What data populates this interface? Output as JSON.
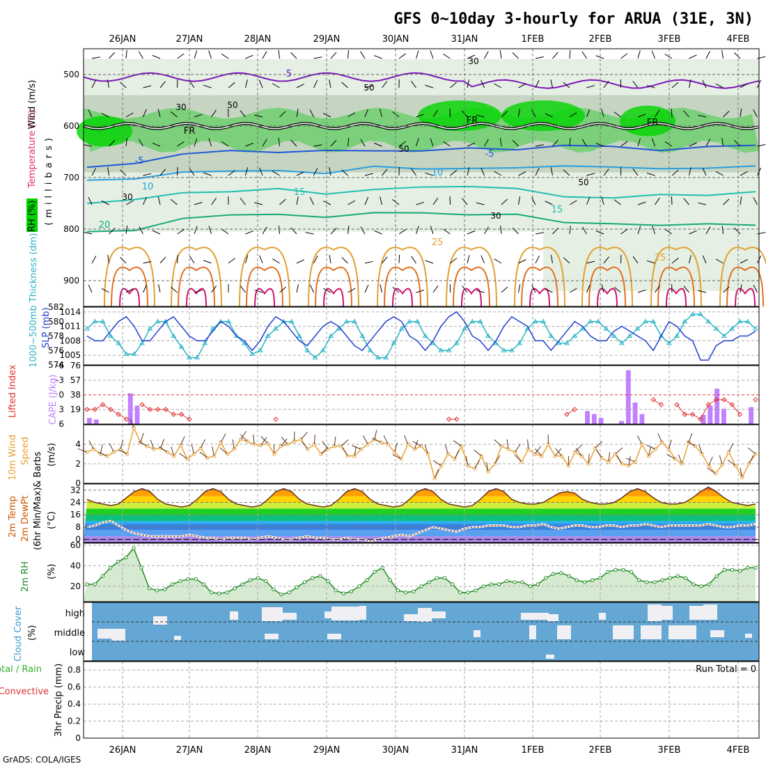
{
  "title": "GFS 0~10day 3-hourly for ARUA (31E, 3N)",
  "footer": "GrADS: COLA/IGES",
  "dates": [
    "26JAN",
    "27JAN",
    "28JAN",
    "29JAN",
    "30JAN",
    "31JAN",
    "1FEB",
    "2FEB",
    "3FEB",
    "4FEB"
  ],
  "chart_data": [
    {
      "type": "heatmap",
      "name": "upper-air cross-section",
      "ylabel_parts": {
        "rh": "RH (%)",
        "temp": "Temperature (°C)",
        "wind": "Wind (m/s)",
        "mb": "(millibars)"
      },
      "y_ticks": [
        500,
        600,
        700,
        800,
        900
      ],
      "ylim": [
        450,
        950
      ],
      "contour_labels": [
        "5",
        "FR",
        "-5",
        "10",
        "15",
        "20",
        "25",
        "30",
        "50"
      ],
      "freezing_level_mb": 600,
      "isotherms": [
        {
          "label": "-5",
          "level_mb": [
            680,
            670,
            655,
            650,
            650,
            645,
            650,
            650,
            640,
            645,
            640,
            640,
            645,
            640,
            640
          ]
        },
        {
          "label": "10",
          "level_mb": [
            705,
            700,
            690,
            690,
            685,
            690,
            680,
            685,
            680,
            680,
            680,
            680,
            680,
            682,
            680
          ]
        },
        {
          "label": "15",
          "level_mb": [
            750,
            740,
            730,
            730,
            720,
            730,
            725,
            720,
            715,
            720,
            740,
            740,
            730,
            735,
            730
          ]
        },
        {
          "label": "20",
          "level_mb": [
            805,
            800,
            780,
            775,
            770,
            775,
            770,
            770,
            770,
            770,
            790,
            790,
            790,
            790,
            795
          ]
        }
      ],
      "colors": {
        "rh30": "#e6efe3",
        "rh50": "#c5d5c2",
        "rh70": "#6fcf6f",
        "rh90": "#00d400",
        "fr": "#000000",
        "neg5": "#1f56d6",
        "t10": "#2a9fe0",
        "t15": "#1fbfb0",
        "t20": "#16a97a",
        "t25": "#e0a030",
        "t30": "#e07020",
        "t35": "#d01070",
        "t5": "#7a18b8"
      }
    },
    {
      "type": "line",
      "name": "SLP and thickness",
      "ylabel_parts": {
        "thick": "1000~500mb Thickness (dm)",
        "slp": "SLP (mb)"
      },
      "left_ticks": [
        574,
        576,
        578,
        580,
        582
      ],
      "right_ticks": [
        1005,
        1008,
        1011,
        1014
      ],
      "series": [
        {
          "name": "SLP (mb)",
          "color": "#1f3fcf",
          "values": [
            1009,
            1008,
            1008,
            1010,
            1012,
            1013,
            1011,
            1008,
            1008,
            1010,
            1012,
            1013,
            1011,
            1009,
            1008,
            1008,
            1010,
            1012,
            1011,
            1009,
            1008,
            1006,
            1008,
            1011,
            1013,
            1012,
            1010,
            1008,
            1007,
            1009,
            1011,
            1012,
            1011,
            1009,
            1007,
            1006,
            1008,
            1010,
            1012,
            1013,
            1012,
            1009,
            1008,
            1006,
            1008,
            1011,
            1013,
            1014,
            1012,
            1009,
            1008,
            1006,
            1008,
            1011,
            1013,
            1012,
            1011,
            1008,
            1008,
            1006,
            1008,
            1010,
            1012,
            1011,
            1009,
            1008,
            1008,
            1010,
            1011,
            1010,
            1009,
            1008,
            1006,
            1009,
            1012,
            1011,
            1009,
            1008,
            1004,
            1004,
            1007,
            1008,
            1008,
            1009,
            1009,
            1010
          ]
        },
        {
          "name": "1000~500mb Thickness (dm)",
          "color": "#2ab5c6",
          "values": [
            579,
            580,
            580,
            578,
            577,
            575.5,
            575.5,
            577,
            579,
            580,
            580,
            578,
            576.5,
            575,
            575,
            577,
            579,
            580,
            580,
            578,
            577,
            575.5,
            576,
            578,
            579,
            580,
            580,
            578,
            576,
            575,
            576,
            578,
            579,
            580,
            580,
            578,
            576,
            575,
            575,
            577,
            579,
            580,
            580,
            578,
            577,
            576,
            576,
            577,
            579,
            580,
            580,
            578,
            577,
            576,
            576,
            577,
            579,
            580,
            580,
            578,
            577,
            577,
            578,
            579,
            580,
            580,
            579,
            578,
            577,
            578,
            579,
            580,
            580,
            578,
            577,
            578,
            580,
            581,
            581,
            580,
            579,
            578,
            579,
            580,
            580,
            579
          ]
        }
      ]
    },
    {
      "type": "bar",
      "name": "Lifted Index and CAPE",
      "ylabel_parts": {
        "li": "Lifted Index",
        "cape": "CAPE (J/kg)"
      },
      "left_ticks": [
        "-6",
        "-3",
        "0",
        "3",
        "6"
      ],
      "right_ticks": [
        19,
        38,
        57,
        76
      ],
      "series": [
        {
          "name": "Lifted Index",
          "color": "#e03030",
          "values": [
            3,
            3,
            2,
            3,
            4,
            5,
            6,
            2,
            3,
            3,
            3,
            4,
            4,
            5,
            6,
            6,
            6,
            6,
            6,
            6,
            6,
            6,
            6,
            6,
            5,
            6,
            6,
            6,
            6,
            6,
            6,
            6,
            6,
            6,
            6,
            6,
            6,
            6,
            6,
            6,
            6,
            6,
            6,
            6,
            6,
            6,
            5,
            5,
            6,
            6,
            6,
            6,
            6,
            6,
            6,
            6,
            6,
            6,
            6,
            6,
            6,
            4,
            3,
            6,
            6,
            6,
            6,
            6,
            6,
            6,
            6,
            6,
            1,
            2,
            6,
            2,
            4,
            4,
            5,
            2,
            1,
            1,
            2,
            4,
            6,
            1
          ]
        },
        {
          "name": "CAPE (J/kg)",
          "color": "#c080ff",
          "values": [
            8,
            6,
            0,
            0,
            0,
            0,
            40,
            24,
            0,
            0,
            0,
            0,
            0,
            0,
            0,
            0,
            0,
            0,
            0,
            0,
            0,
            0,
            0,
            0,
            0,
            0,
            0,
            0,
            0,
            0,
            0,
            0,
            0,
            0,
            0,
            0,
            0,
            0,
            0,
            0,
            0,
            0,
            0,
            0,
            0,
            0,
            0,
            0,
            0,
            0,
            0,
            0,
            0,
            0,
            0,
            0,
            0,
            0,
            0,
            0,
            0,
            0,
            0,
            0,
            0,
            0,
            0,
            0,
            0,
            0,
            0,
            0,
            0,
            17,
            13,
            8,
            0,
            0,
            4,
            70,
            28,
            13,
            0,
            0,
            0,
            0,
            0,
            0,
            0,
            0,
            12,
            24,
            46,
            20,
            0,
            0,
            0,
            22
          ]
        }
      ]
    },
    {
      "type": "line",
      "name": "10m Wind",
      "ylabel_parts": {
        "w": "10m Wind",
        "spd": "Speed",
        "barb": "& Barbs",
        "unit": "(m/s)"
      },
      "left_ticks": [
        0,
        2,
        4
      ],
      "series": [
        {
          "name": "Speed",
          "color": "#e8a030",
          "values": [
            3.2,
            3.5,
            3.0,
            2.8,
            3.2,
            3.5,
            3.0,
            5.7,
            4.2,
            3.8,
            3.5,
            3.6,
            3.2,
            2.8,
            3.9,
            2.5,
            3.0,
            3.6,
            2.6,
            2.8,
            4.2,
            3.0,
            3.5,
            4.5,
            4.3,
            4.0,
            3.9,
            4.1,
            3.0,
            3.8,
            4.0,
            4.3,
            4.5,
            3.5,
            4.0,
            3.0,
            3.5,
            3.8,
            3.8,
            2.8,
            2.8,
            3.5,
            4.0,
            4.5,
            4.2,
            4.0,
            3.2,
            2.5,
            4.0,
            3.5,
            3.8,
            3.0,
            0.5,
            1.8,
            3.0,
            2.5,
            3.8,
            1.8,
            1.5,
            2.8,
            1.2,
            2.0,
            3.8,
            3.5,
            3.2,
            2.2,
            3.5,
            3.0,
            2.8,
            4.0,
            2.8,
            2.8,
            1.8,
            3.2,
            2.8,
            2.0,
            3.6,
            2.6,
            2.2,
            3.0,
            2.0,
            1.8,
            2.2,
            4.0,
            2.8,
            3.5,
            4.2,
            3.5,
            2.5,
            2.0,
            4.2,
            3.8,
            3.0,
            1.8,
            1.0,
            1.9,
            3.2,
            1.8,
            0.6,
            2.0,
            3.0
          ]
        }
      ]
    },
    {
      "type": "area",
      "name": "2m Temp",
      "ylabel_parts": {
        "t": "2m Temp",
        "d": "2m DewPt",
        "m": "(6hr Min/Max)",
        "u": "(°C)"
      },
      "left_ticks": [
        0,
        8,
        16,
        24,
        32
      ],
      "series": [
        {
          "name": "2m Temp",
          "color": "#663322",
          "values": [
            26,
            24,
            23,
            22,
            23,
            27,
            31,
            33,
            31,
            26,
            23,
            22,
            21,
            22,
            26,
            31,
            33,
            31,
            26,
            23,
            22,
            21,
            22,
            26,
            31,
            33,
            31,
            26,
            23,
            22,
            21,
            22,
            26,
            31,
            33,
            31,
            26,
            23,
            22,
            21,
            22,
            26,
            31,
            33,
            31,
            26,
            23,
            22,
            21,
            22,
            26,
            31,
            33,
            31,
            26,
            24,
            23,
            23,
            24,
            27,
            30,
            31,
            30,
            26,
            24,
            23,
            23,
            24,
            27,
            31,
            33,
            31,
            27,
            24,
            23,
            23,
            24,
            27,
            31,
            34,
            31,
            27,
            24,
            23,
            22,
            23
          ]
        },
        {
          "name": "2m DewPt",
          "color": "#8a5a4a",
          "values": [
            8,
            9,
            11,
            12,
            9,
            6,
            4,
            3,
            2,
            2,
            2,
            2,
            2,
            3,
            2,
            1,
            1,
            0,
            1,
            1,
            1,
            0,
            1,
            2,
            1,
            0,
            0,
            1,
            2,
            1,
            1,
            0,
            0,
            1,
            0,
            0,
            -1,
            0,
            1,
            2,
            3,
            2,
            4,
            6,
            8,
            7,
            6,
            5,
            7,
            8,
            8,
            9,
            9,
            9,
            8,
            8,
            9,
            9,
            10,
            8,
            7,
            8,
            9,
            9,
            8,
            8,
            9,
            9,
            8,
            9,
            9,
            10,
            9,
            8,
            9,
            9,
            9,
            9,
            9,
            10,
            9,
            8,
            8,
            9,
            9,
            10
          ]
        }
      ]
    },
    {
      "type": "area",
      "name": "2m RH",
      "ylabel_parts": {
        "rh": "2m RH",
        "u": "(%)"
      },
      "left_ticks": [
        20,
        40,
        60
      ],
      "series": [
        {
          "name": "2m RH",
          "color": "#208a20",
          "values": [
            22,
            22,
            30,
            38,
            44,
            48,
            57,
            38,
            18,
            16,
            17,
            22,
            25,
            27,
            27,
            22,
            14,
            13,
            14,
            18,
            22,
            26,
            28,
            25,
            17,
            12,
            14,
            19,
            24,
            28,
            30,
            25,
            16,
            13,
            15,
            20,
            26,
            34,
            38,
            26,
            16,
            14,
            15,
            20,
            24,
            28,
            28,
            22,
            14,
            14,
            16,
            20,
            22,
            22,
            25,
            24,
            24,
            20,
            22,
            28,
            32,
            33,
            30,
            26,
            24,
            26,
            28,
            34,
            36,
            36,
            34,
            26,
            24,
            24,
            26,
            28,
            30,
            28,
            22,
            20,
            22,
            30,
            36,
            36,
            35,
            38,
            38
          ]
        }
      ]
    },
    {
      "type": "heatmap",
      "name": "Cloud Cover",
      "ylabel_parts": {
        "c": "Cloud Cover",
        "u": "(%)"
      },
      "rows": [
        "high",
        "middle",
        "low"
      ],
      "colors": {
        "sky": "#64a7d4",
        "cloud": "#f0f0f4"
      }
    },
    {
      "type": "bar",
      "name": "3hr Precip",
      "ylabel_parts": {
        "p1": "Total / Rain",
        "p2": "Convective",
        "p3": "3hr Precip (mm)"
      },
      "left_ticks": [
        0,
        0.2,
        0.4,
        0.6,
        0.8
      ],
      "run_total": "Run Total = 0",
      "series": [
        {
          "name": "3hr Precip (mm)",
          "color": "#30b030",
          "values": []
        }
      ]
    }
  ]
}
